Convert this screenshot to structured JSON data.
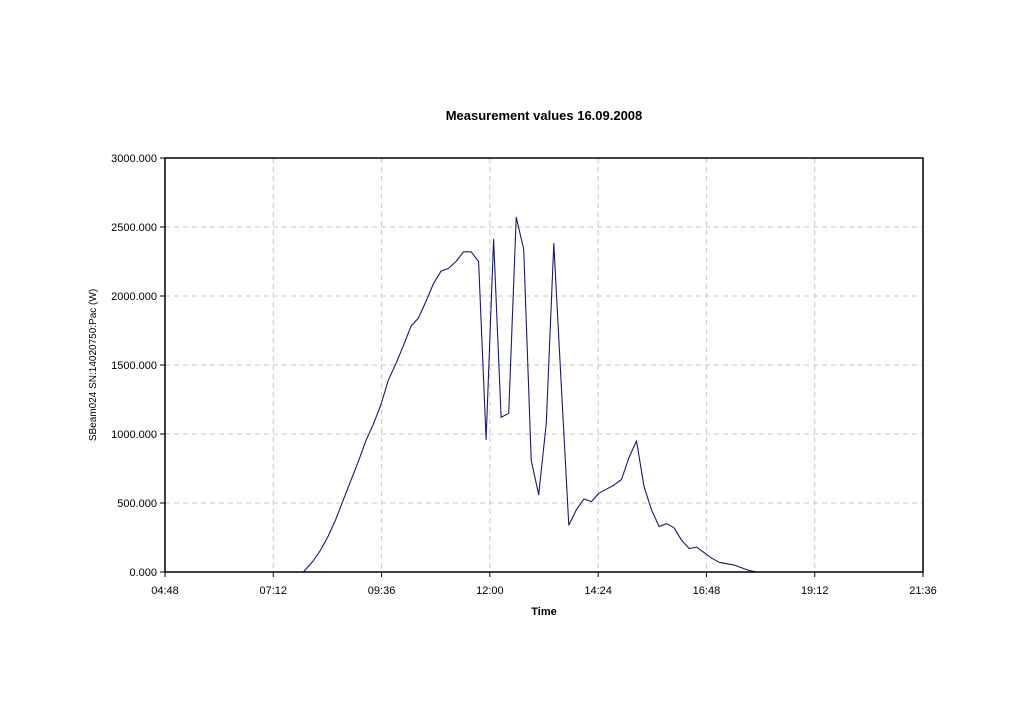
{
  "chart_data": {
    "type": "line",
    "title": "Measurement values 16.09.2008",
    "xlabel": "Time",
    "ylabel": "SBeam024 SN:14020750:Pac (W)",
    "x_ticks": [
      "04:48",
      "07:12",
      "09:36",
      "12:00",
      "14:24",
      "16:48",
      "19:12",
      "21:36"
    ],
    "y_ticks": [
      "0.000",
      "500.000",
      "1000.000",
      "1500.000",
      "2000.000",
      "2500.000",
      "3000.000"
    ],
    "xlim": [
      "04:48",
      "21:36"
    ],
    "ylim": [
      0,
      3000
    ],
    "grid": true,
    "series": [
      {
        "color": "#1a1a6e",
        "x": [
          "07:52",
          "08:05",
          "08:15",
          "08:25",
          "08:35",
          "08:45",
          "08:55",
          "09:05",
          "09:15",
          "09:25",
          "09:35",
          "09:45",
          "09:55",
          "10:05",
          "10:15",
          "10:25",
          "10:35",
          "10:45",
          "10:55",
          "11:05",
          "11:15",
          "11:25",
          "11:35",
          "11:45",
          "11:55",
          "12:05",
          "12:15",
          "12:25",
          "12:35",
          "12:45",
          "12:55",
          "13:05",
          "13:15",
          "13:25",
          "13:35",
          "13:45",
          "13:55",
          "14:05",
          "14:15",
          "14:25",
          "14:35",
          "14:45",
          "14:55",
          "15:05",
          "15:15",
          "15:25",
          "15:35",
          "15:45",
          "15:55",
          "16:05",
          "16:15",
          "16:25",
          "16:35",
          "16:45",
          "16:55",
          "17:05",
          "17:15",
          "17:25",
          "17:35",
          "17:45",
          "17:55",
          "18:05",
          "18:15",
          "18:25",
          "18:35",
          "18:45",
          "18:55"
        ],
        "values": [
          0,
          80,
          160,
          260,
          380,
          520,
          660,
          800,
          950,
          1070,
          1210,
          1390,
          1510,
          1640,
          1780,
          1840,
          1960,
          2090,
          2180,
          2200,
          2250,
          2320,
          2320,
          2250,
          960,
          2410,
          1120,
          1150,
          2570,
          2340,
          810,
          560,
          1080,
          2380,
          1350,
          340,
          450,
          530,
          510,
          570,
          600,
          630,
          670,
          830,
          950,
          620,
          450,
          330,
          350,
          320,
          230,
          170,
          180,
          140,
          100,
          70,
          60,
          50,
          30,
          10,
          0,
          0,
          0,
          0,
          0,
          0,
          0
        ]
      }
    ]
  }
}
